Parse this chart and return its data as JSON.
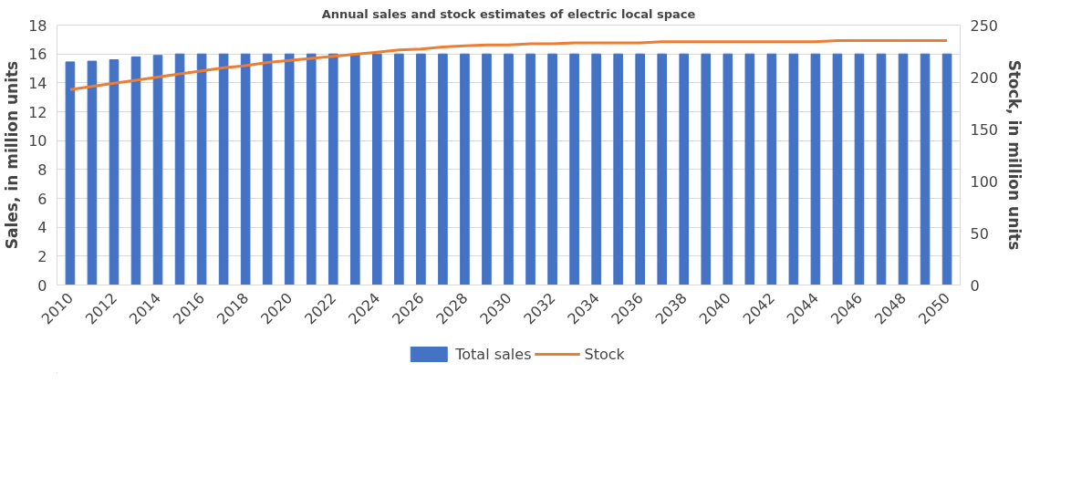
{
  "chart_data": {
    "type": "bar",
    "title": "Annual sales and stock estimates of electric local space",
    "ylabel": "Sales, in million units",
    "y2label": "Stock, in million units",
    "categories": [
      "2010",
      null,
      "2012",
      null,
      "2014",
      null,
      "2016",
      null,
      "2018",
      null,
      "2020",
      null,
      "2022",
      null,
      "2024",
      null,
      "2026",
      null,
      "2028",
      null,
      "2030",
      null,
      "2032",
      null,
      "2034",
      null,
      "2036",
      null,
      "2038",
      null,
      "2040",
      null,
      "2042",
      null,
      "2044",
      null,
      "2046",
      null,
      "2048",
      null,
      "2050"
    ],
    "series": [
      {
        "name": "Total sales",
        "color": "#4472c4",
        "values": [
          15.45,
          15.5,
          15.6,
          15.8,
          15.9,
          16,
          16,
          16,
          16,
          16,
          16,
          16,
          16,
          16,
          16,
          16,
          16,
          16,
          16,
          16,
          16,
          16,
          16,
          16,
          16,
          16,
          16,
          16,
          16,
          16,
          16,
          16,
          16,
          16,
          16,
          16,
          16,
          16,
          16,
          16,
          16
        ]
      },
      {
        "name": "Stock",
        "type": "line",
        "axis": "y2",
        "color": "#ed7d31",
        "values": [
          188,
          191,
          194,
          197,
          200,
          203,
          206,
          209,
          211,
          214,
          216,
          218,
          220,
          222,
          224,
          226,
          227,
          229,
          230,
          231,
          231,
          232,
          232,
          233,
          233,
          233,
          233,
          234,
          234,
          234,
          234,
          234,
          234,
          234,
          234,
          235,
          235,
          235,
          235,
          235,
          235
        ]
      }
    ],
    "ylim": [
      0,
      18
    ],
    "yticks": [
      0,
      2,
      4,
      6,
      8,
      10,
      12,
      14,
      16,
      18
    ],
    "y2lim": [
      0,
      250
    ],
    "y2ticks": [
      0,
      50,
      100,
      150,
      200,
      250
    ],
    "grid": "y",
    "legend": "bottom"
  }
}
